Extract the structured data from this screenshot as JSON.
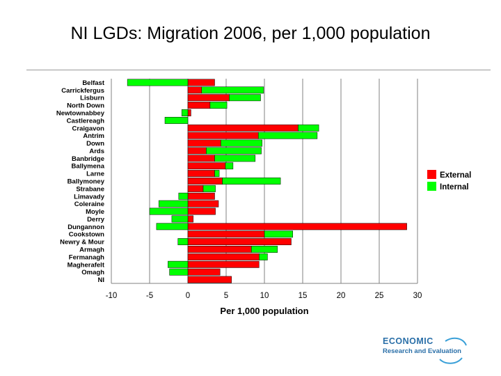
{
  "title": "NI LGDs: Migration 2006, per 1,000 population",
  "logo": {
    "main": "ECONOMIC",
    "sub": "Research and Evaluation"
  },
  "colors": {
    "external": "#ff0000",
    "internal": "#00ff00",
    "grid": "#808080"
  },
  "chart_data": {
    "type": "bar",
    "orientation": "horizontal",
    "stacked": true,
    "categories": [
      "Belfast",
      "Carrickfergus",
      "Lisburn",
      "North Down",
      "Newtownabbey",
      "Castlereagh",
      "Craigavon",
      "Antrim",
      "Down",
      "Ards",
      "Banbridge",
      "Ballymena",
      "Larne",
      "Ballymoney",
      "Strabane",
      "Limavady",
      "Coleraine",
      "Moyle",
      "Derry",
      "Dungannon",
      "Cookstown",
      "Newry & Mour",
      "Armagh",
      "Fermanagh",
      "Magherafelt",
      "Omagh",
      "NI"
    ],
    "series": [
      {
        "name": "External",
        "values": [
          3.5,
          1.8,
          5.4,
          2.9,
          0.4,
          0.0,
          14.4,
          9.2,
          4.3,
          2.4,
          3.5,
          4.9,
          3.5,
          4.5,
          2.0,
          3.5,
          4.0,
          3.6,
          0.7,
          28.6,
          10.0,
          13.5,
          8.3,
          9.3,
          9.3,
          4.2,
          5.7
        ]
      },
      {
        "name": "Internal",
        "values": [
          -7.9,
          8.1,
          4.1,
          2.2,
          -0.8,
          -3.0,
          2.7,
          7.7,
          5.4,
          7.2,
          5.3,
          1.0,
          0.6,
          7.6,
          1.6,
          -1.2,
          -3.8,
          -5.0,
          -2.1,
          -4.1,
          3.7,
          -1.3,
          3.4,
          1.1,
          -2.6,
          -2.4,
          0.0
        ]
      }
    ],
    "xlabel": "Per 1,000 population",
    "xlim": [
      -10,
      30
    ],
    "xticks": [
      -10,
      -5,
      0,
      5,
      10,
      15,
      20,
      25,
      30
    ],
    "grid": true,
    "legend": "right"
  }
}
